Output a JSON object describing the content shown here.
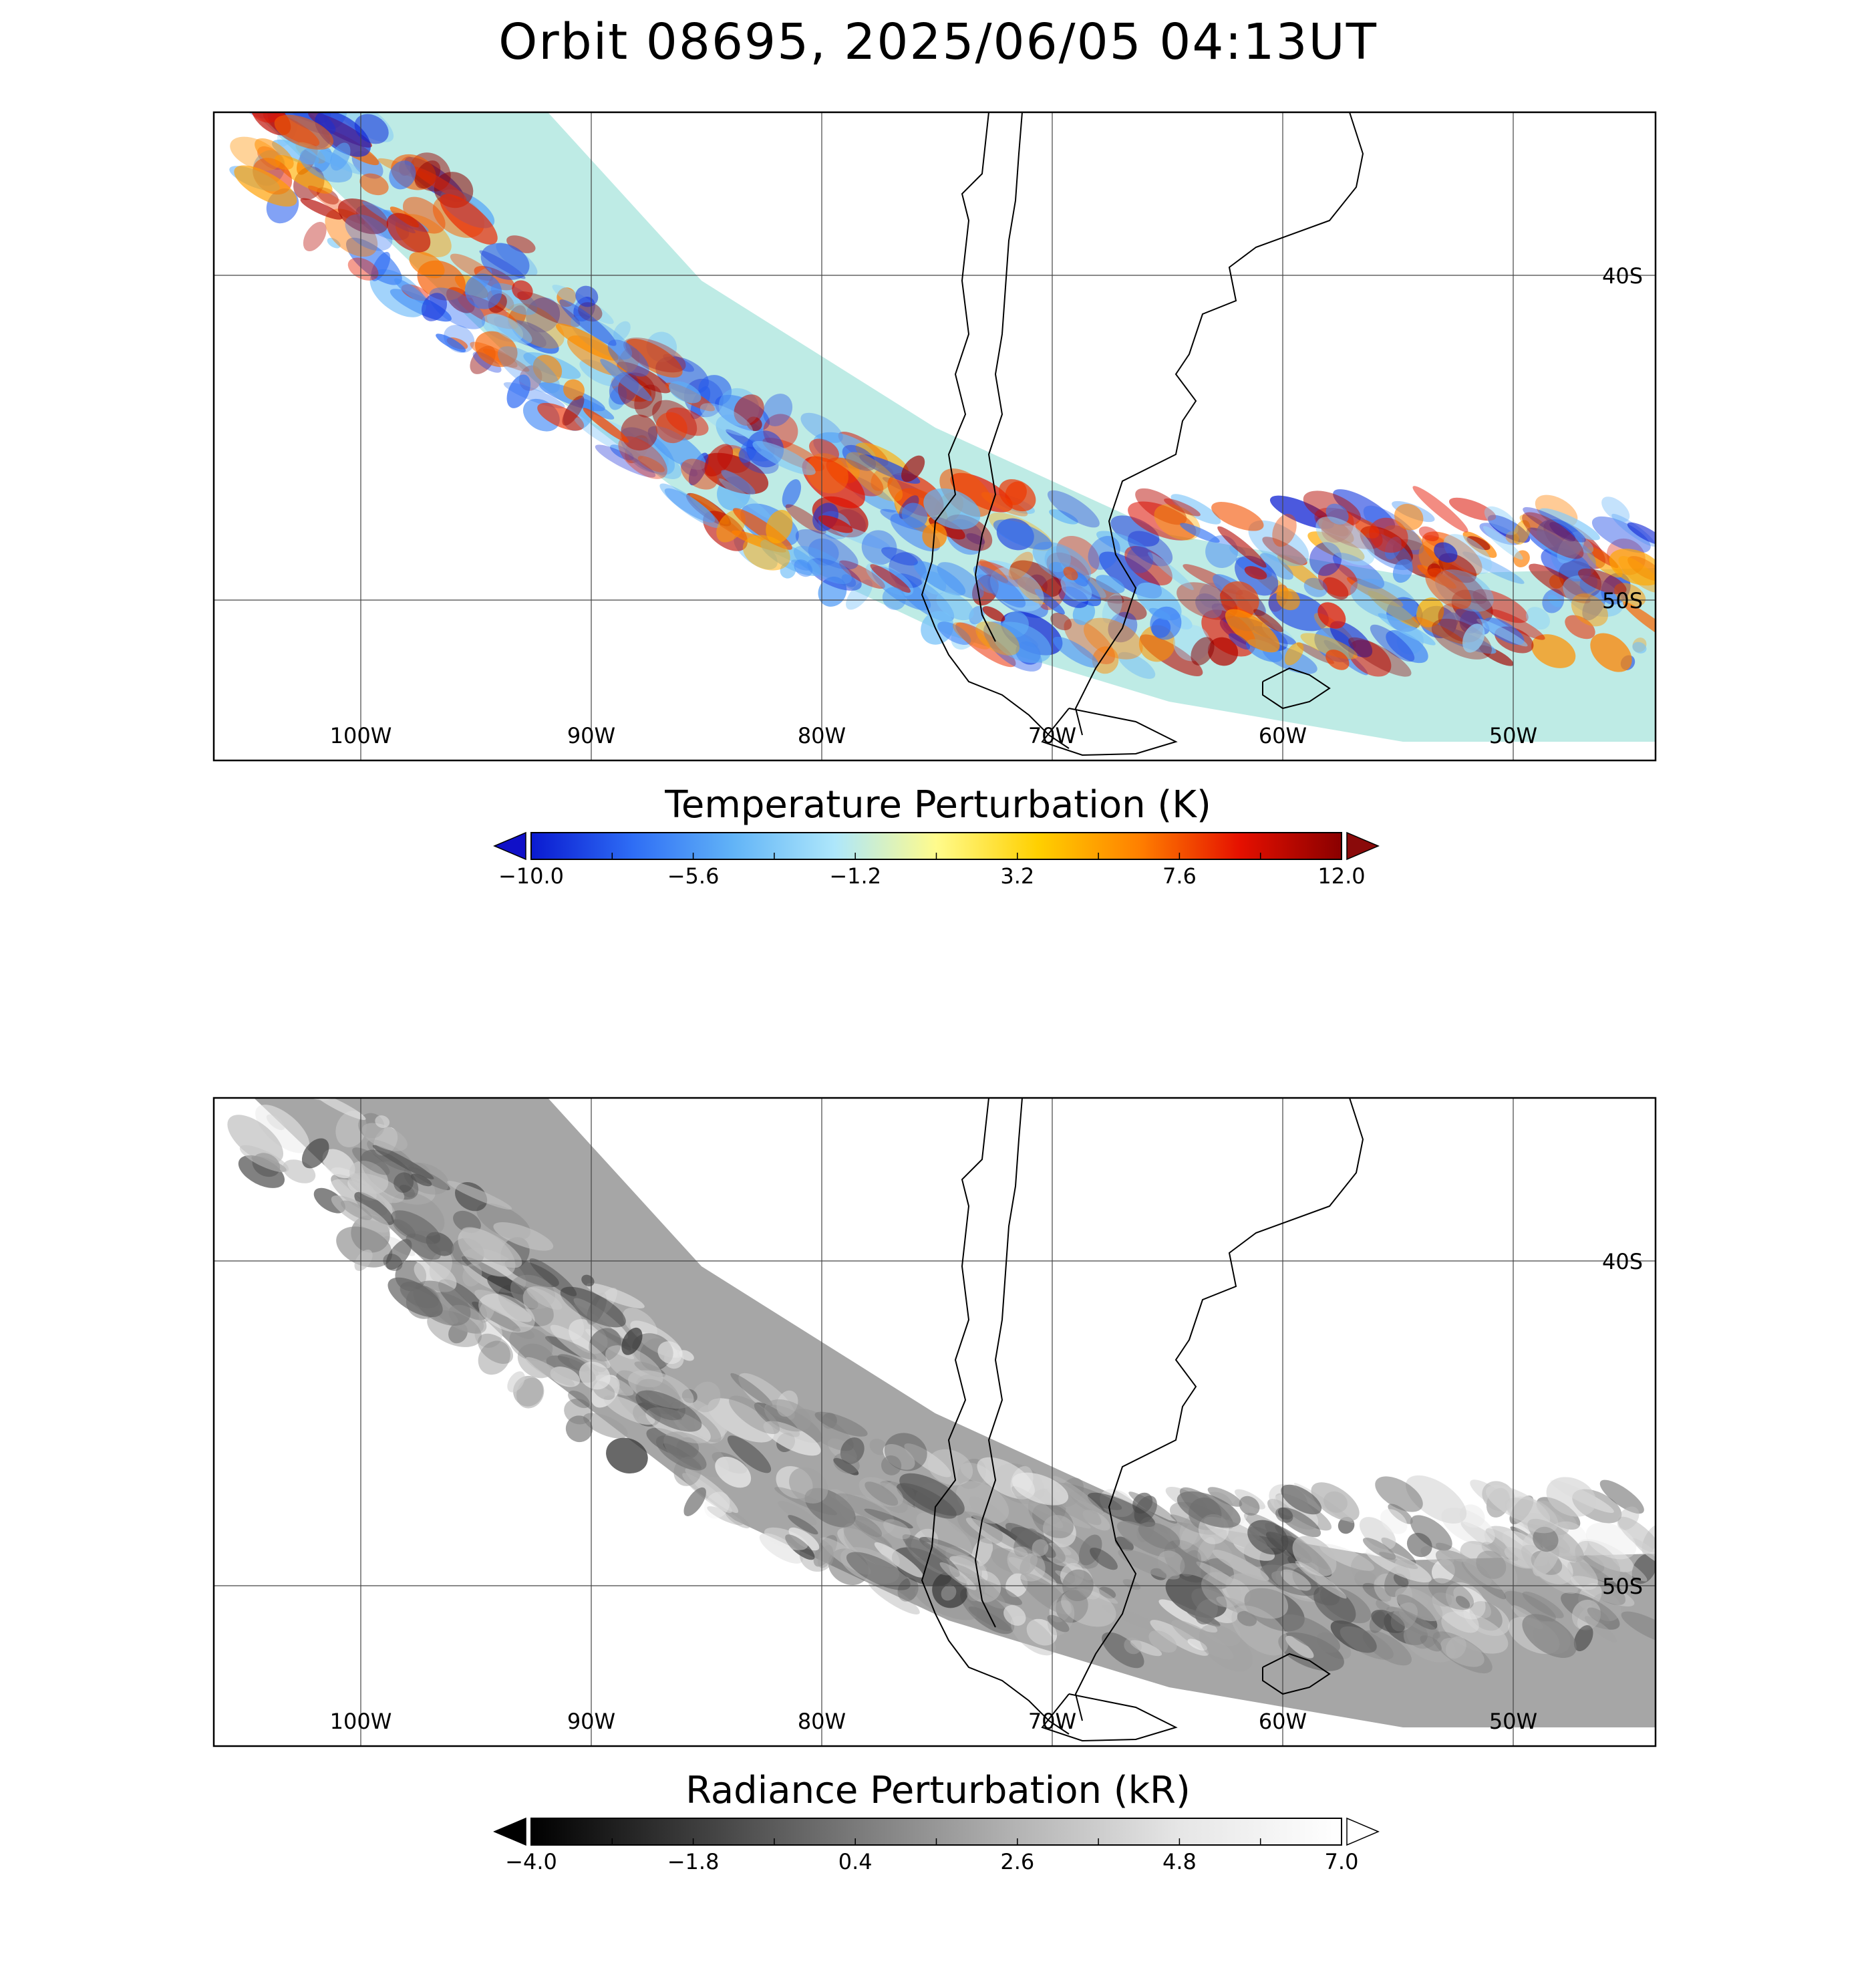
{
  "title": "Orbit 08695, 2025/06/05 04:13UT",
  "map": {
    "lon_labels": [
      "100W",
      "90W",
      "80W",
      "70W",
      "60W",
      "50W"
    ],
    "lon_values": [
      -100,
      -90,
      -80,
      -70,
      -60,
      -50
    ],
    "lat_labels": [
      "40S",
      "50S"
    ],
    "lat_values": [
      -40,
      -50
    ]
  },
  "panels": [
    {
      "name": "temperature",
      "colorbar_title": "Temperature Perturbation (K)",
      "ticks": [
        "-10.0",
        "-5.6",
        "-1.2",
        "3.2",
        "7.6",
        "12.0"
      ],
      "range": [
        -10.0,
        12.0
      ],
      "colormap": [
        "#0a1ad0",
        "#2e6df5",
        "#62b4f7",
        "#aee7fb",
        "#fffb8c",
        "#ffd000",
        "#ff8000",
        "#e51000",
        "#8a0000"
      ],
      "under_color": "#1010c8",
      "over_color": "#8a0a0a"
    },
    {
      "name": "radiance",
      "colorbar_title": "Radiance Perturbation (kR)",
      "ticks": [
        "-4.0",
        "-1.8",
        "0.4",
        "2.6",
        "4.8",
        "7.0"
      ],
      "range": [
        -4.0,
        7.0
      ],
      "colormap": [
        "#000000",
        "#3c3c3c",
        "#7a7a7a",
        "#b4b4b4",
        "#e6e6e6",
        "#ffffff"
      ],
      "under_color": "#000000",
      "over_color": "#ffffff"
    }
  ]
}
